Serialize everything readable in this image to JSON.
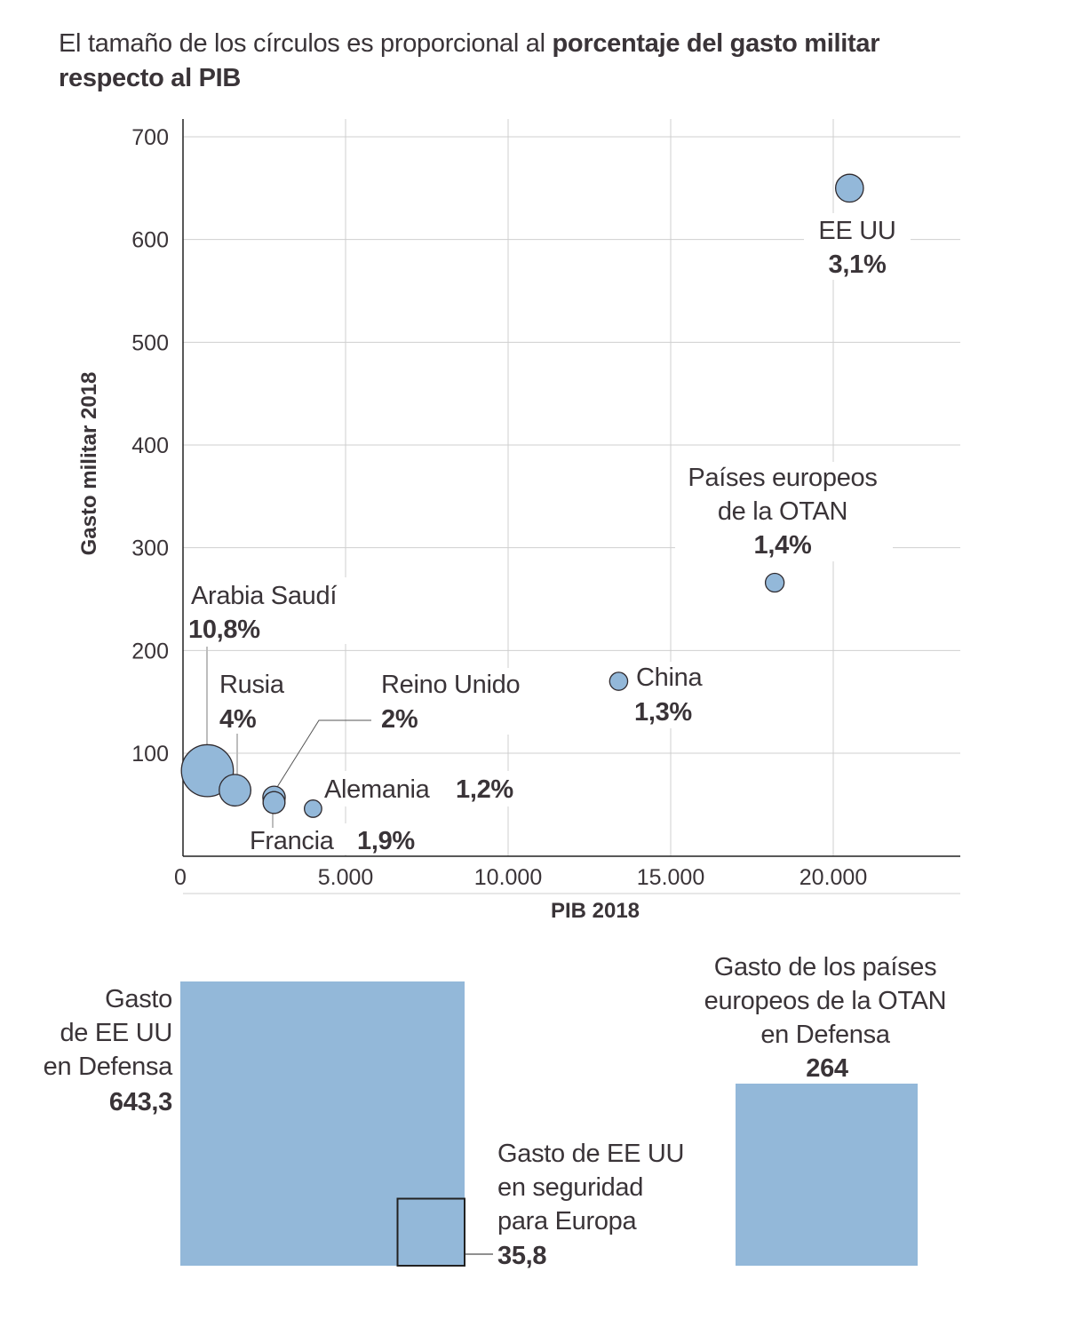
{
  "title": {
    "regular": "El tamaño de los círculos es proporcional al ",
    "bold": "porcentaje del gasto militar respecto al PIB"
  },
  "colors": {
    "bubble_fill": "#93b8d9",
    "bubble_stroke": "#2f2a2e",
    "grid": "#cfcfcf",
    "text": "#3a3438",
    "square_fill": "#93b8d9"
  },
  "chart_data": [
    {
      "type": "scatter",
      "title": "El tamaño de los círculos es proporcional al porcentaje del gasto militar respecto al PIB",
      "xlabel": "PIB 2018",
      "ylabel": "Gasto militar 2018",
      "xlim": [
        0,
        24000
      ],
      "ylim": [
        0,
        700
      ],
      "x_ticks": [
        0,
        5000,
        10000,
        15000,
        20000
      ],
      "x_tick_labels": [
        "0",
        "5.000",
        "10.000",
        "15.000",
        "20.000"
      ],
      "y_ticks": [
        100,
        200,
        300,
        400,
        500,
        600,
        700
      ],
      "y_tick_labels": [
        "100",
        "200",
        "300",
        "400",
        "500",
        "600",
        "700"
      ],
      "grid": true,
      "size_encoding": "porcentaje del gasto militar respecto al PIB",
      "points": [
        {
          "name": "EE UU",
          "x": 20500,
          "y": 650,
          "pct": 3.1,
          "pct_label": "3,1%"
        },
        {
          "name": "Países europeos de la OTAN",
          "name_lines": [
            "Países europeos",
            "de la OTAN"
          ],
          "x": 18200,
          "y": 266,
          "pct": 1.4,
          "pct_label": "1,4%"
        },
        {
          "name": "China",
          "x": 13400,
          "y": 170,
          "pct": 1.3,
          "pct_label": "1,3%"
        },
        {
          "name": "Arabia Saudí",
          "x": 750,
          "y": 83,
          "pct": 10.8,
          "pct_label": "10,8%"
        },
        {
          "name": "Rusia",
          "x": 1600,
          "y": 64,
          "pct": 4.0,
          "pct_label": "4%"
        },
        {
          "name": "Reino Unido",
          "x": 2800,
          "y": 57,
          "pct": 2.0,
          "pct_label": "2%"
        },
        {
          "name": "Francia",
          "x": 2800,
          "y": 52,
          "pct": 1.9,
          "pct_label": "1,9%"
        },
        {
          "name": "Alemania",
          "x": 4000,
          "y": 46,
          "pct": 1.2,
          "pct_label": "1,2%"
        }
      ]
    },
    {
      "type": "bar",
      "title": "Comparación de gasto (área proporcional)",
      "items": [
        {
          "name": "Gasto de EE UU en Defensa",
          "lines": [
            "Gasto",
            "de EE UU",
            "en Defensa"
          ],
          "value": 643.3,
          "value_label": "643,3"
        },
        {
          "name": "Gasto de EE UU en seguridad para Europa",
          "lines": [
            "Gasto de EE UU",
            "en seguridad",
            "para Europa"
          ],
          "value": 35.8,
          "value_label": "35,8"
        },
        {
          "name": "Gasto de los países europeos de la OTAN en Defensa",
          "lines": [
            "Gasto de los países",
            "europeos de la OTAN",
            "en Defensa"
          ],
          "value": 264,
          "value_label": "264"
        }
      ]
    }
  ]
}
